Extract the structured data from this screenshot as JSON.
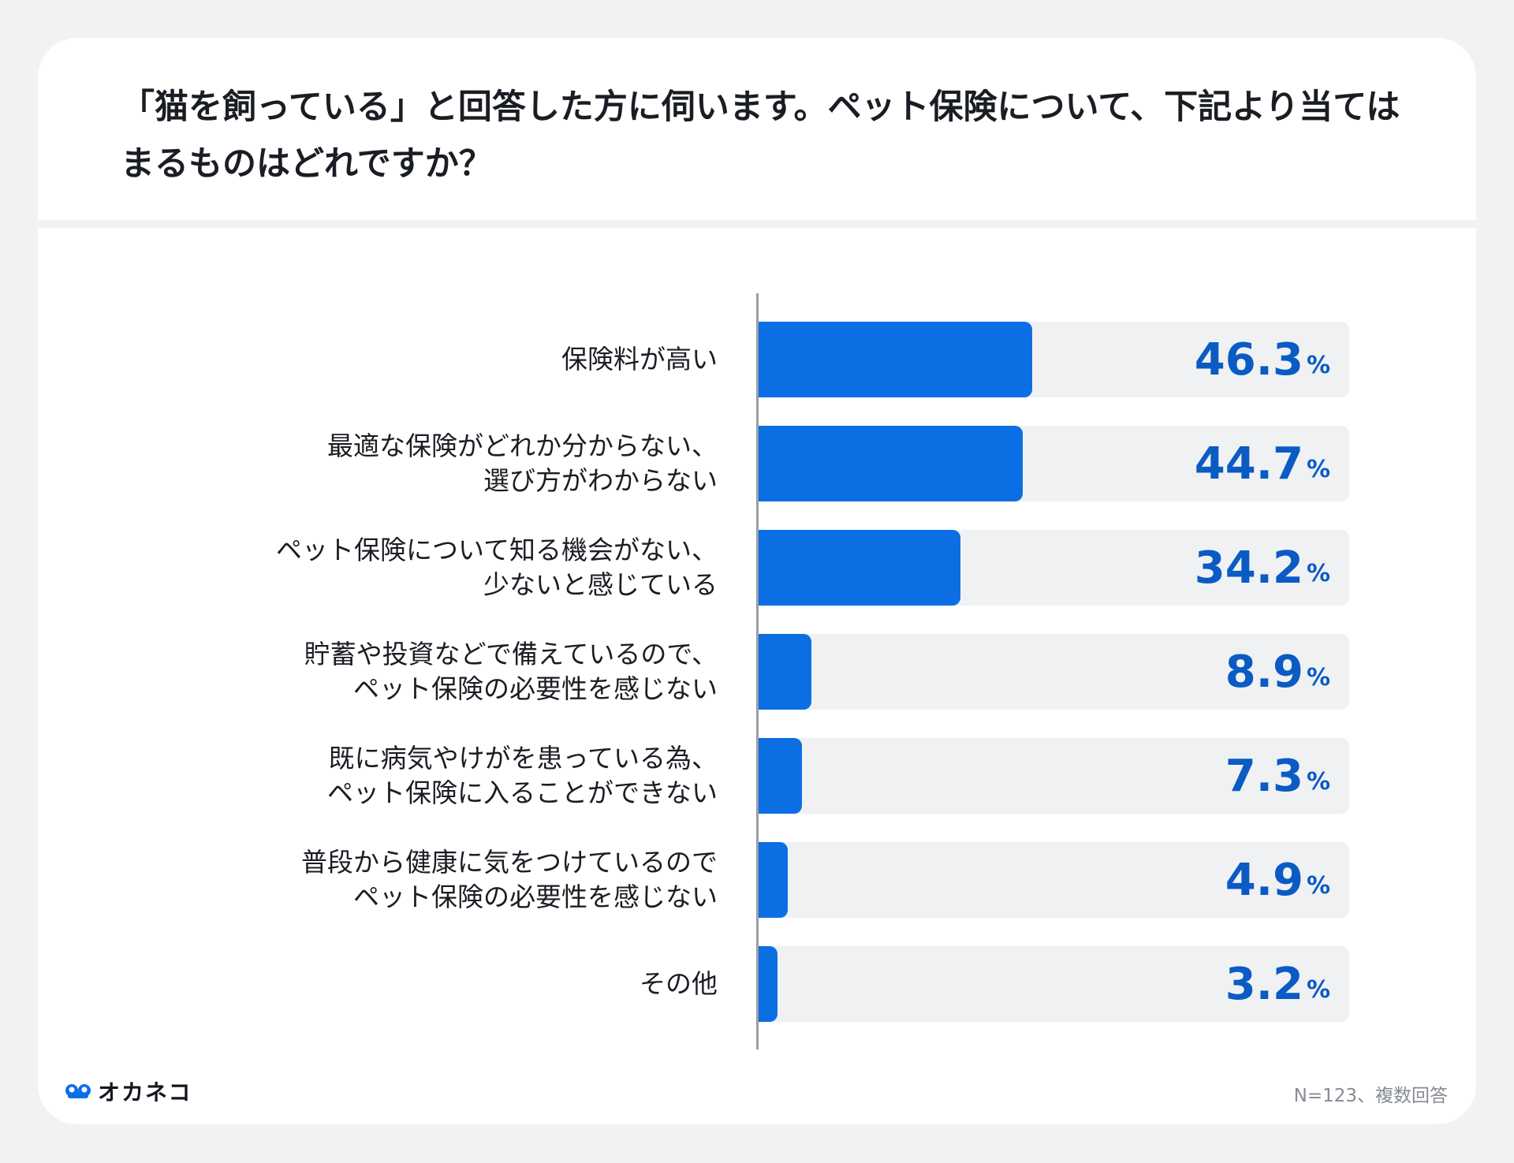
{
  "title": "「猫を飼っている」と回答した方に伺います。ペット保険について、下記より当てはまるものはどれですか？",
  "chart_data": {
    "type": "bar",
    "orientation": "horizontal",
    "categories": [
      "保険料が高い",
      "最適な保険がどれか分からない、\n選び方がわからない",
      "ペット保険について知る機会がない、\n少ないと感じている",
      "貯蓄や投資などで備えているので、\nペット保険の必要性を感じない",
      "既に病気やけがを患っている為、\nペット保険に入ることができない",
      "普段から健康に気をつけているので\nペット保険の必要性を感じない",
      "その他"
    ],
    "values": [
      46.3,
      44.7,
      34.2,
      8.9,
      7.3,
      4.9,
      3.2
    ],
    "value_labels": [
      "46.3",
      "44.7",
      "34.2",
      "8.9",
      "7.3",
      "4.9",
      "3.2"
    ],
    "unit": "%",
    "xlim": [
      0,
      100
    ],
    "bar_color": "#0b6fe3",
    "label_color": "#0a5bc4"
  },
  "footer": {
    "logo": "オカネコ",
    "note": "N=123、複数回答"
  }
}
